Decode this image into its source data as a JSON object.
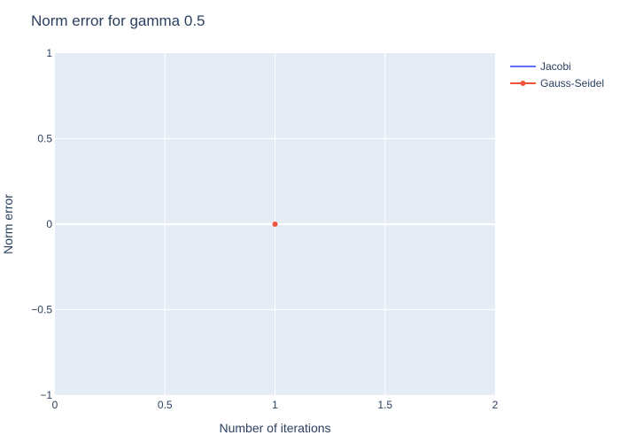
{
  "chart_data": {
    "type": "line",
    "title": "Norm error for gamma 0.5",
    "xlabel": "Number of iterations",
    "ylabel": "Norm error",
    "xlim": [
      0,
      2
    ],
    "ylim": [
      -1,
      1
    ],
    "x_ticks": [
      "0",
      "0.5",
      "1",
      "1.5",
      "2"
    ],
    "y_ticks": [
      "1",
      "0.5",
      "0",
      "−0.5",
      "−1"
    ],
    "x_tick_values": [
      0,
      0.5,
      1,
      1.5,
      2
    ],
    "y_tick_values": [
      1,
      0.5,
      0,
      -0.5,
      -1
    ],
    "grid": true,
    "legend_position": "top-right",
    "series": [
      {
        "name": "Jacobi",
        "color": "#636efa",
        "mode": "lines",
        "x": [],
        "y": []
      },
      {
        "name": "Gauss-Seidel",
        "color": "#ef553b",
        "mode": "lines+markers",
        "x": [
          1
        ],
        "y": [
          0
        ]
      }
    ],
    "colors": {
      "plot_bg": "#e5ecf6",
      "grid": "#ffffff",
      "text": "#2a3f5f"
    }
  }
}
